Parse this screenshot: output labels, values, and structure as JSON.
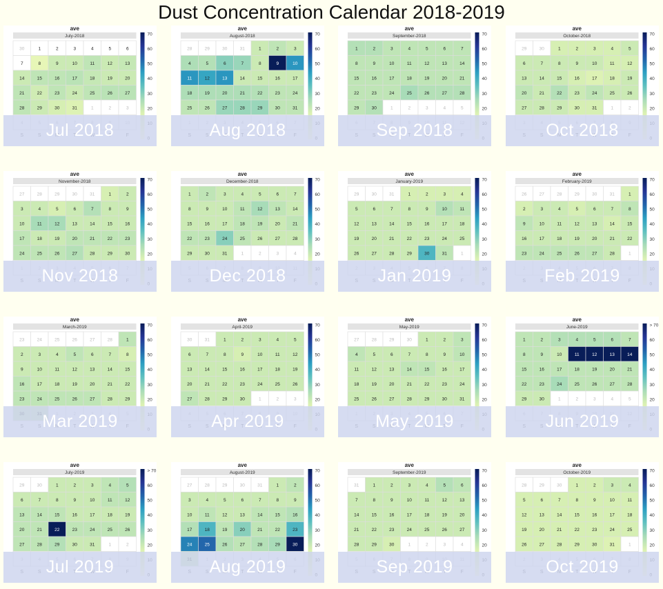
{
  "title": "Dust Concentration Calendar 2018-2019",
  "colorbar_label": "ave",
  "colors": {
    "scale": [
      "#ffffd9",
      "#f0f9b9",
      "#d9f0b3",
      "#a7dbb8",
      "#5fc0c0",
      "#2c9fc2",
      "#2263aa",
      "#253494",
      "#081d58"
    ],
    "empty": "#ffffff",
    "grid": "#dddddd"
  },
  "chart_data": [
    {
      "type": "heatmap",
      "band_label": "Jul 2018",
      "month_title": "July-2018",
      "year": 2018,
      "month": 7,
      "weekday_labels": [
        "S",
        "S",
        "M",
        "T",
        "W",
        "T",
        "F"
      ],
      "colorbar": {
        "min": 0,
        "max": 70,
        "ticks": [
          "0",
          "10",
          "20",
          "30",
          "40",
          "50",
          "60",
          "70"
        ]
      },
      "values": [
        null,
        null,
        null,
        null,
        null,
        null,
        null,
        12,
        20,
        20,
        22,
        20,
        21,
        20,
        22,
        22,
        23,
        21,
        20,
        20,
        22,
        19,
        22,
        20,
        22,
        23,
        23,
        22,
        20,
        18,
        16
      ]
    },
    {
      "type": "heatmap",
      "band_label": "Aug 2018",
      "month_title": "August-2018",
      "year": 2018,
      "month": 8,
      "weekday_labels": [
        "S",
        "S",
        "M",
        "T",
        "W",
        "T",
        "F"
      ],
      "colorbar": {
        "min": 0,
        "max": 70,
        "ticks": [
          "0",
          "10",
          "20",
          "30",
          "40",
          "50",
          "60",
          "70"
        ]
      },
      "values": [
        20,
        22,
        20,
        25,
        24,
        30,
        28,
        20,
        70,
        45,
        45,
        42,
        45,
        20,
        20,
        20,
        20,
        25,
        25,
        25,
        25,
        24,
        22,
        22,
        22,
        22,
        28,
        28,
        28,
        22,
        22
      ]
    },
    {
      "type": "heatmap",
      "band_label": "Sep 2018",
      "month_title": "September-2018",
      "year": 2018,
      "month": 9,
      "weekday_labels": [
        "S",
        "S",
        "M",
        "T",
        "W",
        "T",
        "F"
      ],
      "colorbar": {
        "min": 0,
        "max": 70,
        "ticks": [
          "0",
          "10",
          "20",
          "30",
          "40",
          "50",
          "60",
          "70"
        ]
      },
      "values": [
        24,
        24,
        22,
        22,
        22,
        22,
        22,
        22,
        22,
        22,
        22,
        22,
        22,
        22,
        22,
        22,
        22,
        22,
        22,
        22,
        22,
        22,
        22,
        22,
        26,
        24,
        24,
        24,
        22,
        24
      ]
    },
    {
      "type": "heatmap",
      "band_label": "Oct 2018",
      "month_title": "October-2018",
      "year": 2018,
      "month": 10,
      "weekday_labels": [
        "S",
        "S",
        "M",
        "T",
        "W",
        "T",
        "F"
      ],
      "colorbar": {
        "min": 0,
        "max": 70,
        "ticks": [
          "0",
          "10",
          "20",
          "30",
          "40",
          "50",
          "60",
          "70"
        ]
      },
      "values": [
        18,
        18,
        18,
        18,
        20,
        20,
        20,
        20,
        20,
        20,
        18,
        18,
        20,
        20,
        20,
        18,
        16,
        18,
        20,
        22,
        20,
        24,
        20,
        22,
        20,
        20,
        20,
        20,
        20,
        18,
        18
      ]
    },
    {
      "type": "heatmap",
      "band_label": "Nov 2018",
      "month_title": "November-2018",
      "year": 2018,
      "month": 11,
      "weekday_labels": [
        "S",
        "S",
        "M",
        "T",
        "W",
        "T",
        "F"
      ],
      "colorbar": {
        "min": 0,
        "max": 70,
        "ticks": [
          "0",
          "10",
          "20",
          "30",
          "40",
          "50",
          "60",
          "70"
        ]
      },
      "values": [
        18,
        20,
        20,
        20,
        18,
        20,
        24,
        20,
        20,
        20,
        26,
        26,
        20,
        20,
        20,
        20,
        22,
        20,
        20,
        22,
        22,
        22,
        22,
        22,
        22,
        22,
        24,
        20,
        20,
        20
      ]
    },
    {
      "type": "heatmap",
      "band_label": "Dec 2018",
      "month_title": "December-2018",
      "year": 2018,
      "month": 12,
      "weekday_labels": [
        "S",
        "S",
        "M",
        "T",
        "W",
        "T",
        "F"
      ],
      "colorbar": {
        "min": 0,
        "max": 70,
        "ticks": [
          "0",
          "10",
          "20",
          "30",
          "40",
          "50",
          "60",
          "70"
        ]
      },
      "values": [
        20,
        22,
        20,
        20,
        20,
        20,
        20,
        20,
        20,
        20,
        22,
        26,
        22,
        20,
        20,
        20,
        20,
        22,
        22,
        20,
        22,
        22,
        22,
        30,
        22,
        20,
        20,
        20,
        20,
        20,
        20
      ]
    },
    {
      "type": "heatmap",
      "band_label": "Jan 2019",
      "month_title": "January-2019",
      "year": 2019,
      "month": 1,
      "weekday_labels": [
        "S",
        "S",
        "M",
        "T",
        "W",
        "T",
        "F"
      ],
      "colorbar": {
        "min": 0,
        "max": 70,
        "ticks": [
          "0",
          "10",
          "20",
          "30",
          "40",
          "50",
          "60",
          "70"
        ]
      },
      "values": [
        18,
        18,
        18,
        18,
        20,
        20,
        20,
        20,
        20,
        24,
        22,
        20,
        20,
        20,
        20,
        20,
        20,
        20,
        20,
        20,
        20,
        20,
        20,
        20,
        20,
        20,
        20,
        20,
        20,
        38,
        22
      ]
    },
    {
      "type": "heatmap",
      "band_label": "Feb 2019",
      "month_title": "February-2019",
      "year": 2019,
      "month": 2,
      "weekday_labels": [
        "S",
        "S",
        "M",
        "T",
        "W",
        "T",
        "F"
      ],
      "colorbar": {
        "min": 0,
        "max": 70,
        "ticks": [
          "0",
          "10",
          "20",
          "30",
          "40",
          "50",
          "60",
          "70"
        ]
      },
      "values": [
        18,
        18,
        20,
        20,
        18,
        20,
        20,
        22,
        22,
        20,
        20,
        20,
        20,
        18,
        20,
        20,
        20,
        20,
        20,
        20,
        20,
        20,
        22,
        22,
        22,
        22,
        22,
        20
      ]
    },
    {
      "type": "heatmap",
      "band_label": "Mar 2019",
      "month_title": "March-2019",
      "year": 2019,
      "month": 3,
      "weekday_labels": [
        "S",
        "S",
        "M",
        "T",
        "W",
        "T",
        "F"
      ],
      "colorbar": {
        "min": 0,
        "max": 70,
        "ticks": [
          "0",
          "10",
          "20",
          "30",
          "40",
          "50",
          "60",
          "70"
        ]
      },
      "values": [
        22,
        20,
        20,
        20,
        22,
        20,
        20,
        18,
        20,
        20,
        20,
        20,
        20,
        20,
        20,
        22,
        20,
        20,
        20,
        20,
        20,
        20,
        22,
        22,
        22,
        22,
        22,
        20,
        20,
        20,
        20
      ]
    },
    {
      "type": "heatmap",
      "band_label": "Apr 2019",
      "month_title": "April-2019",
      "year": 2019,
      "month": 4,
      "weekday_labels": [
        "S",
        "S",
        "M",
        "T",
        "W",
        "T",
        "F"
      ],
      "colorbar": {
        "min": 0,
        "max": 70,
        "ticks": [
          "0",
          "10",
          "20",
          "30",
          "40",
          "50",
          "60",
          "70"
        ]
      },
      "values": [
        20,
        20,
        20,
        20,
        20,
        20,
        20,
        20,
        18,
        20,
        20,
        20,
        20,
        20,
        20,
        20,
        20,
        20,
        20,
        20,
        20,
        20,
        20,
        20,
        20,
        20,
        22,
        20,
        20,
        20
      ]
    },
    {
      "type": "heatmap",
      "band_label": "May 2019",
      "month_title": "May-2019",
      "year": 2019,
      "month": 5,
      "weekday_labels": [
        "S",
        "S",
        "M",
        "T",
        "W",
        "T",
        "F"
      ],
      "colorbar": {
        "min": 0,
        "max": 70,
        "ticks": [
          "0",
          "10",
          "20",
          "30",
          "40",
          "50",
          "60",
          "70"
        ]
      },
      "values": [
        20,
        20,
        22,
        22,
        20,
        20,
        20,
        20,
        20,
        22,
        20,
        20,
        20,
        22,
        22,
        20,
        20,
        20,
        20,
        20,
        20,
        20,
        20,
        20,
        20,
        20,
        20,
        20,
        20,
        20,
        20
      ]
    },
    {
      "type": "heatmap",
      "band_label": "Jun 2019",
      "month_title": "June-2019",
      "year": 2019,
      "month": 6,
      "weekday_labels": [
        "S",
        "S",
        "M",
        "T",
        "W",
        "T",
        "F"
      ],
      "colorbar": {
        "min": 0,
        "max": 70,
        "ticks": [
          "0",
          "10",
          "20",
          "30",
          "40",
          "50",
          "60",
          "> 70"
        ]
      },
      "values": [
        22,
        22,
        24,
        24,
        24,
        24,
        22,
        22,
        22,
        20,
        75,
        75,
        75,
        75,
        22,
        22,
        22,
        22,
        22,
        22,
        22,
        22,
        22,
        26,
        22,
        22,
        22,
        22,
        20,
        20
      ]
    },
    {
      "type": "heatmap",
      "band_label": "Jul 2019",
      "month_title": "July-2019",
      "year": 2019,
      "month": 7,
      "weekday_labels": [
        "S",
        "S",
        "M",
        "T",
        "W",
        "T",
        "F"
      ],
      "colorbar": {
        "min": 0,
        "max": 70,
        "ticks": [
          "0",
          "10",
          "20",
          "30",
          "40",
          "50",
          "60",
          "> 70"
        ]
      },
      "values": [
        20,
        20,
        20,
        22,
        24,
        20,
        20,
        20,
        20,
        20,
        22,
        22,
        22,
        22,
        22,
        20,
        20,
        20,
        20,
        22,
        22,
        75,
        22,
        22,
        22,
        22,
        22,
        22,
        24,
        20,
        20
      ]
    },
    {
      "type": "heatmap",
      "band_label": "Aug 2019",
      "month_title": "August-2019",
      "year": 2019,
      "month": 8,
      "weekday_labels": [
        "S",
        "S",
        "M",
        "T",
        "W",
        "T",
        "F"
      ],
      "colorbar": {
        "min": 0,
        "max": 70,
        "ticks": [
          "0",
          "10",
          "20",
          "30",
          "40",
          "50",
          "60",
          "70"
        ]
      },
      "values": [
        20,
        22,
        20,
        20,
        20,
        20,
        20,
        20,
        20,
        20,
        22,
        20,
        20,
        22,
        22,
        24,
        24,
        38,
        22,
        30,
        22,
        22,
        38,
        48,
        52,
        24,
        22,
        24,
        26,
        75,
        20
      ]
    },
    {
      "type": "heatmap",
      "band_label": "Sep 2019",
      "month_title": "September-2019",
      "year": 2019,
      "month": 9,
      "weekday_labels": [
        "S",
        "S",
        "M",
        "T",
        "W",
        "T",
        "F"
      ],
      "colorbar": {
        "min": 0,
        "max": 70,
        "ticks": [
          "0",
          "10",
          "20",
          "30",
          "40",
          "50",
          "60",
          "70"
        ]
      },
      "values": [
        20,
        20,
        20,
        20,
        24,
        22,
        20,
        20,
        20,
        20,
        20,
        20,
        20,
        20,
        20,
        20,
        20,
        20,
        20,
        20,
        20,
        20,
        20,
        20,
        20,
        20,
        20,
        20,
        20,
        18
      ]
    },
    {
      "type": "heatmap",
      "band_label": "Oct 2019",
      "month_title": "October-2019",
      "year": 2019,
      "month": 10,
      "weekday_labels": [
        "S",
        "S",
        "M",
        "T",
        "W",
        "T",
        "F"
      ],
      "colorbar": {
        "min": 0,
        "max": 70,
        "ticks": [
          "0",
          "10",
          "20",
          "30",
          "40",
          "50",
          "60",
          "70"
        ]
      },
      "values": [
        18,
        18,
        20,
        20,
        18,
        18,
        18,
        18,
        18,
        18,
        18,
        18,
        18,
        18,
        18,
        18,
        18,
        18,
        18,
        18,
        18,
        18,
        18,
        18,
        18,
        18,
        18,
        18,
        18,
        18,
        16
      ]
    }
  ]
}
